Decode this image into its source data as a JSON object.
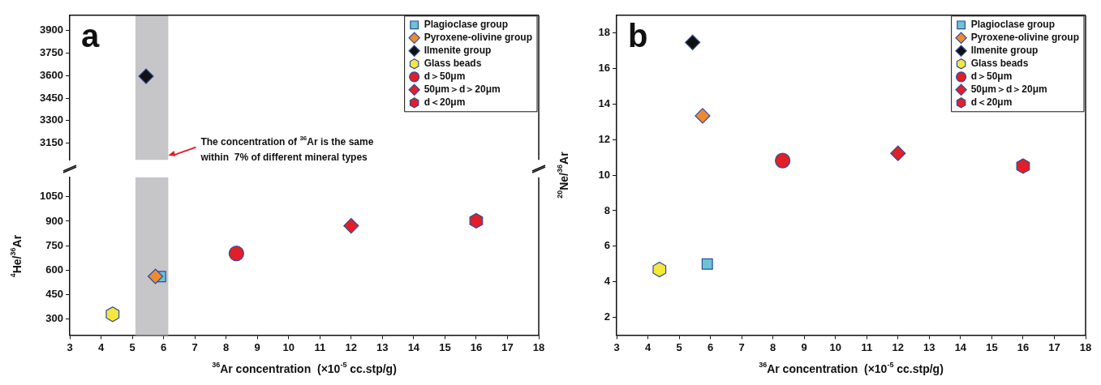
{
  "chart_data": [
    {
      "type": "scatter",
      "annotations": [
        "a",
        {
          "text": "The concentration of $^{36}$Ar is the same\nwithin  7% of different mineral types",
          "x": 6.15,
          "y": 3070
        }
      ],
      "xlim": [
        3,
        18
      ],
      "xticks": [
        3,
        4,
        5,
        6,
        7,
        8,
        9,
        10,
        11,
        12,
        13,
        14,
        15,
        16,
        17,
        18
      ],
      "ylim": [
        3040,
        4000
      ],
      "yticks": [
        3150,
        3300,
        3450,
        3600,
        3750,
        3900
      ],
      "tick_labels": "y",
      "grid": false,
      "legend": "top right",
      "bands": [
        {
          "axis": "x",
          "from": 5.1,
          "to": 6.15,
          "color": "#c6c6c8"
        }
      ],
      "series": [
        {
          "name": "Plagioclase group",
          "color": "#6cc4d4",
          "marker": "square"
        },
        {
          "name": "Pyroxene-olivine group",
          "color": "#ee8a30",
          "marker": "diamond"
        },
        {
          "name": "Ilmenite group",
          "color": "#111111",
          "marker": "diamond",
          "x": [
            5.44
          ],
          "values": [
            3595
          ]
        },
        {
          "name": "Glass beads",
          "color": "#f6e83a"
        },
        {
          "name": "d＞50μm",
          "color": "#e21f26",
          "marker": "circle"
        },
        {
          "name": "50μm＞d＞20μm",
          "color": "#e21f26",
          "marker": "diamond"
        },
        {
          "name": "d＜20μm",
          "color": "#e21f26"
        }
      ]
    },
    {
      "type": "scatter",
      "xlabel": "$^{36}$Ar concentration  (×10$^{-5}$ cc.stp/g)",
      "ylabel": "$^{4}$He/$^{36}$Ar",
      "xlim": [
        3,
        18
      ],
      "xticks": [
        3,
        4,
        5,
        6,
        7,
        8,
        9,
        10,
        11,
        12,
        13,
        14,
        15,
        16,
        17,
        18
      ],
      "ylim": [
        200,
        1170
      ],
      "yticks": [
        300,
        450,
        600,
        750,
        900,
        1050
      ],
      "grid": false,
      "bands": [
        {
          "axis": "x",
          "from": 5.1,
          "to": 6.15,
          "color": "#c6c6c8"
        }
      ],
      "series": [
        {
          "color": "#6cc4d4",
          "marker": "square",
          "x": [
            5.9
          ],
          "values": [
            560
          ]
        },
        {
          "color": "#ee8a30",
          "marker": "diamond",
          "x": [
            5.74
          ],
          "values": [
            561
          ]
        },
        {
          "color": "#f6e83a",
          "x": [
            4.37
          ],
          "values": [
            328
          ]
        },
        {
          "color": "#e21f26",
          "marker": "circle",
          "x": [
            8.33
          ],
          "values": [
            702
          ]
        },
        {
          "color": "#e21f26",
          "marker": "diamond",
          "x": [
            12
          ],
          "values": [
            872
          ]
        },
        {
          "color": "#e21f26",
          "x": [
            16
          ],
          "values": [
            903
          ]
        }
      ]
    },
    {
      "type": "scatter",
      "annotations": [
        "b"
      ],
      "xlabel": "$^{36}$Ar concentration  (×10$^{-5}$ cc.stp/g)",
      "ylabel": "$^{20}$Ne/$^{36}$Ar",
      "xlim": [
        3,
        18
      ],
      "xticks": [
        3,
        4,
        5,
        6,
        7,
        8,
        9,
        10,
        11,
        12,
        13,
        14,
        15,
        16,
        17,
        18
      ],
      "ylim": [
        1,
        19
      ],
      "yticks": [
        2,
        4,
        6,
        8,
        10,
        12,
        14,
        16,
        18
      ],
      "grid": false,
      "legend": "top right",
      "series": [
        {
          "name": "Plagioclase group",
          "color": "#6cc4d4",
          "marker": "square",
          "x": [
            5.9
          ],
          "values": [
            5.0
          ]
        },
        {
          "name": "Pyroxene-olivine group",
          "color": "#ee8a30",
          "marker": "diamond",
          "x": [
            5.75
          ],
          "values": [
            13.34
          ]
        },
        {
          "name": "Ilmenite group",
          "color": "#111111",
          "marker": "diamond",
          "x": [
            5.43
          ],
          "values": [
            17.47
          ]
        },
        {
          "name": "Glass beads",
          "color": "#f6e83a",
          "x": [
            4.37
          ],
          "values": [
            4.69
          ]
        },
        {
          "name": "d＞50μm",
          "color": "#e21f26",
          "marker": "circle",
          "x": [
            8.31
          ],
          "values": [
            10.82
          ]
        },
        {
          "name": "50μm＞d＞20μm",
          "color": "#e21f26",
          "marker": "diamond",
          "x": [
            12
          ],
          "values": [
            11.23
          ]
        },
        {
          "name": "d＜20μm",
          "color": "#e21f26",
          "x": [
            16
          ],
          "values": [
            10.51
          ]
        }
      ]
    }
  ]
}
